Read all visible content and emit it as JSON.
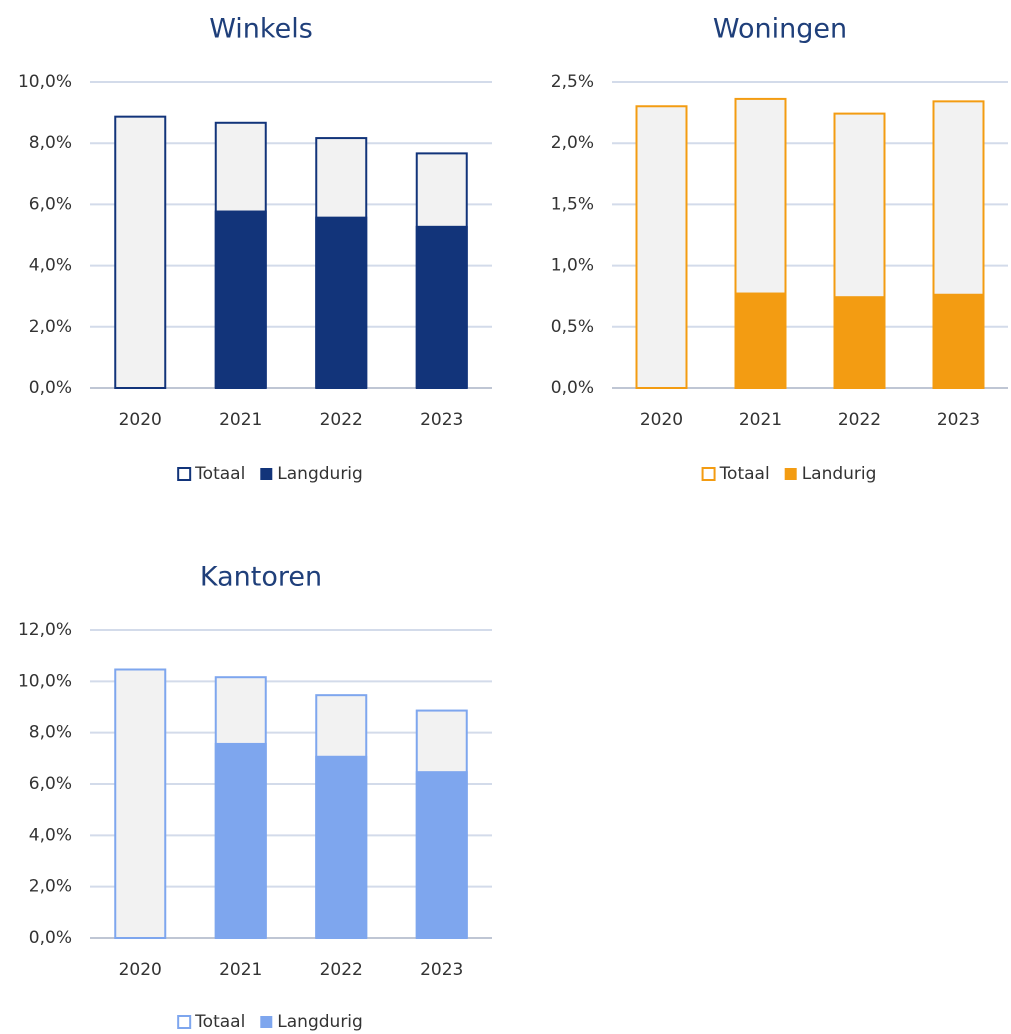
{
  "chart_data": [
    {
      "type": "bar",
      "title": "Winkels",
      "categories": [
        "2020",
        "2021",
        "2022",
        "2023"
      ],
      "series": [
        {
          "name": "Totaal",
          "color": "#12347a",
          "fill": "#f2f2f2",
          "values": [
            8.9,
            8.7,
            8.2,
            7.7
          ]
        },
        {
          "name": "Langdurig",
          "color": "#12347a",
          "values": [
            null,
            5.8,
            5.6,
            5.3
          ]
        }
      ],
      "ylim": [
        0,
        10
      ],
      "yticks": [
        {
          "value": 0,
          "label": "0,0%"
        },
        {
          "value": 2,
          "label": "2,0%"
        },
        {
          "value": 4,
          "label": "4,0%"
        },
        {
          "value": 6,
          "label": "6,0%"
        },
        {
          "value": 8,
          "label": "8,0%"
        },
        {
          "value": 10,
          "label": "10,0%"
        }
      ],
      "grid": true,
      "legend": "bottom"
    },
    {
      "type": "bar",
      "title": "Woningen",
      "categories": [
        "2020",
        "2021",
        "2022",
        "2023"
      ],
      "series": [
        {
          "name": "Totaal",
          "color": "#f39c12",
          "fill": "#f2f2f2",
          "values": [
            2.31,
            2.37,
            2.25,
            2.35
          ]
        },
        {
          "name": "Landurig",
          "color": "#f39c12",
          "values": [
            null,
            0.78,
            0.75,
            0.77
          ]
        }
      ],
      "ylim": [
        0,
        2.5
      ],
      "yticks": [
        {
          "value": 0,
          "label": "0,0%"
        },
        {
          "value": 0.5,
          "label": "0,5%"
        },
        {
          "value": 1,
          "label": "1,0%"
        },
        {
          "value": 1.5,
          "label": "1,5%"
        },
        {
          "value": 2,
          "label": "2,0%"
        },
        {
          "value": 2.5,
          "label": "2,5%"
        }
      ],
      "grid": true,
      "legend": "bottom"
    },
    {
      "type": "bar",
      "title": "Kantoren",
      "categories": [
        "2020",
        "2021",
        "2022",
        "2023"
      ],
      "series": [
        {
          "name": "Totaal",
          "color": "#7ea6ee",
          "fill": "#f2f2f2",
          "values": [
            10.5,
            10.2,
            9.5,
            8.9
          ]
        },
        {
          "name": "Langdurig",
          "color": "#7ea6ee",
          "values": [
            null,
            7.6,
            7.1,
            6.5
          ]
        }
      ],
      "ylim": [
        0,
        12
      ],
      "yticks": [
        {
          "value": 0,
          "label": "0,0%"
        },
        {
          "value": 2,
          "label": "2,0%"
        },
        {
          "value": 4,
          "label": "4,0%"
        },
        {
          "value": 6,
          "label": "6,0%"
        },
        {
          "value": 8,
          "label": "8,0%"
        },
        {
          "value": 10,
          "label": "10,0%"
        },
        {
          "value": 12,
          "label": "12,0%"
        }
      ],
      "grid": true,
      "legend": "bottom"
    }
  ]
}
